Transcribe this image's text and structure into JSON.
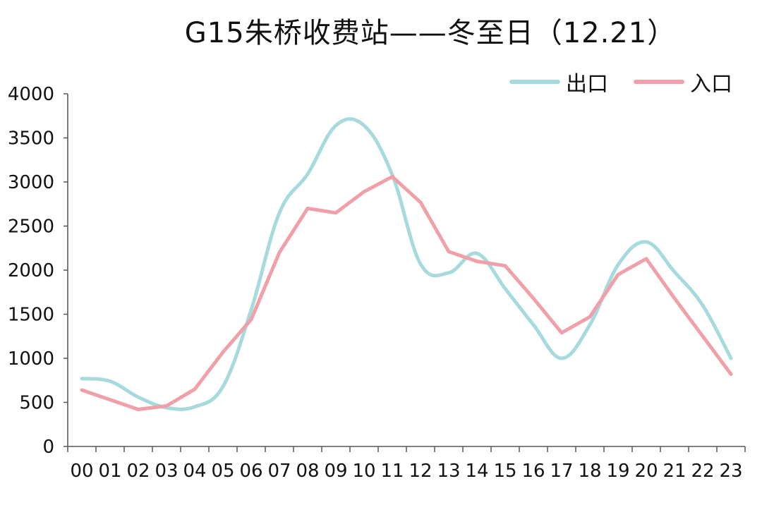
{
  "chart_data": {
    "type": "line",
    "title": "G15朱桥收费站——冬至日（12.21）",
    "categories": [
      "00",
      "01",
      "02",
      "03",
      "04",
      "05",
      "06",
      "07",
      "08",
      "09",
      "10",
      "11",
      "12",
      "13",
      "14",
      "15",
      "16",
      "17",
      "18",
      "19",
      "20",
      "21",
      "22",
      "23"
    ],
    "series": [
      {
        "name": "出口",
        "color": "#a6dadd",
        "smooth": true,
        "values": [
          770,
          740,
          560,
          440,
          450,
          680,
          1550,
          2650,
          3090,
          3640,
          3640,
          3080,
          2070,
          1970,
          2190,
          1790,
          1380,
          1000,
          1380,
          2060,
          2320,
          1980,
          1600,
          1000
        ]
      },
      {
        "name": "入口",
        "color": "#f0a0a8",
        "smooth": false,
        "values": [
          640,
          530,
          420,
          460,
          650,
          1070,
          1440,
          2200,
          2700,
          2650,
          2890,
          3060,
          2770,
          2210,
          2100,
          2050,
          1680,
          1290,
          1470,
          1950,
          2130,
          1680,
          1250,
          820
        ]
      }
    ],
    "yticks": [
      "0",
      "500",
      "1000",
      "1500",
      "2000",
      "2500",
      "3000",
      "3500",
      "4000"
    ],
    "ylim": [
      0,
      4000
    ],
    "grid": false,
    "legend_position": "top-right"
  }
}
